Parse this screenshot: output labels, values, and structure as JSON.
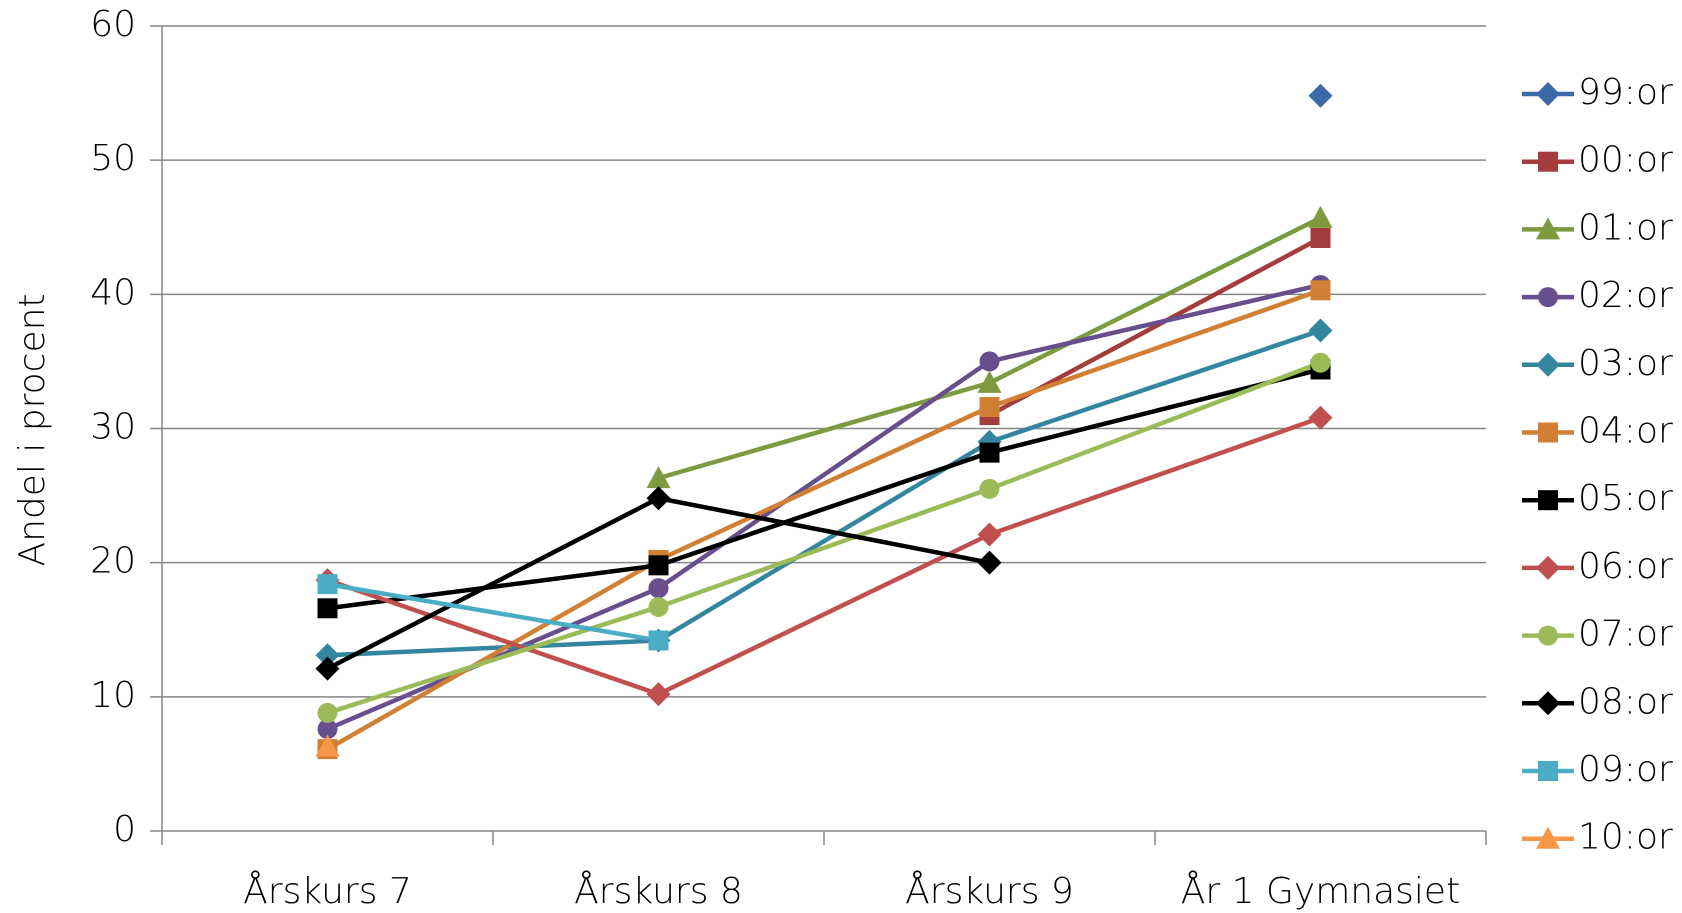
{
  "chart_data": {
    "type": "line",
    "y_label": "Andel i procent",
    "categories": [
      "Årskurs 7",
      "Årskurs 8",
      "Årskurs 9",
      "År 1 Gymnasiet"
    ],
    "ylim": [
      0,
      60
    ],
    "yticks": [
      0,
      10,
      20,
      30,
      40,
      50,
      60
    ],
    "grid": true,
    "legend": "right",
    "series": [
      {
        "name": "99:or",
        "color": "#3d67a5",
        "marker": "diamond",
        "values": [
          null,
          null,
          null,
          54.8
        ]
      },
      {
        "name": "00:or",
        "color": "#a33c3a",
        "marker": "square",
        "values": [
          null,
          null,
          31.0,
          44.2
        ]
      },
      {
        "name": "01:or",
        "color": "#7d9a3f",
        "marker": "triangle",
        "values": [
          null,
          26.3,
          33.4,
          45.7
        ]
      },
      {
        "name": "02:or",
        "color": "#674f8e",
        "marker": "circle",
        "values": [
          7.6,
          18.1,
          35.0,
          40.7
        ]
      },
      {
        "name": "03:or",
        "color": "#34869f",
        "marker": "diamond",
        "values": [
          13.1,
          14.2,
          29.0,
          37.3
        ]
      },
      {
        "name": "04:or",
        "color": "#d07f33",
        "marker": "square",
        "values": [
          6.1,
          20.2,
          31.6,
          40.3
        ]
      },
      {
        "name": "05:or",
        "color": "#000000",
        "marker": "square",
        "values": [
          16.6,
          19.8,
          28.2,
          34.4
        ]
      },
      {
        "name": "06:or",
        "color": "#c0504d",
        "marker": "diamond",
        "values": [
          18.7,
          10.2,
          22.1,
          30.8
        ]
      },
      {
        "name": "07:or",
        "color": "#9bbb59",
        "marker": "circle",
        "values": [
          8.8,
          16.7,
          25.5,
          34.9
        ]
      },
      {
        "name": "08:or",
        "color": "#000000",
        "marker": "diamond",
        "values": [
          12.1,
          24.8,
          20.0,
          null
        ]
      },
      {
        "name": "09:or",
        "color": "#4bacc6",
        "marker": "square",
        "values": [
          18.4,
          14.2,
          null,
          null
        ]
      },
      {
        "name": "10:or",
        "color": "#f79646",
        "marker": "triangle",
        "values": [
          6.3,
          null,
          null,
          null
        ]
      }
    ]
  }
}
